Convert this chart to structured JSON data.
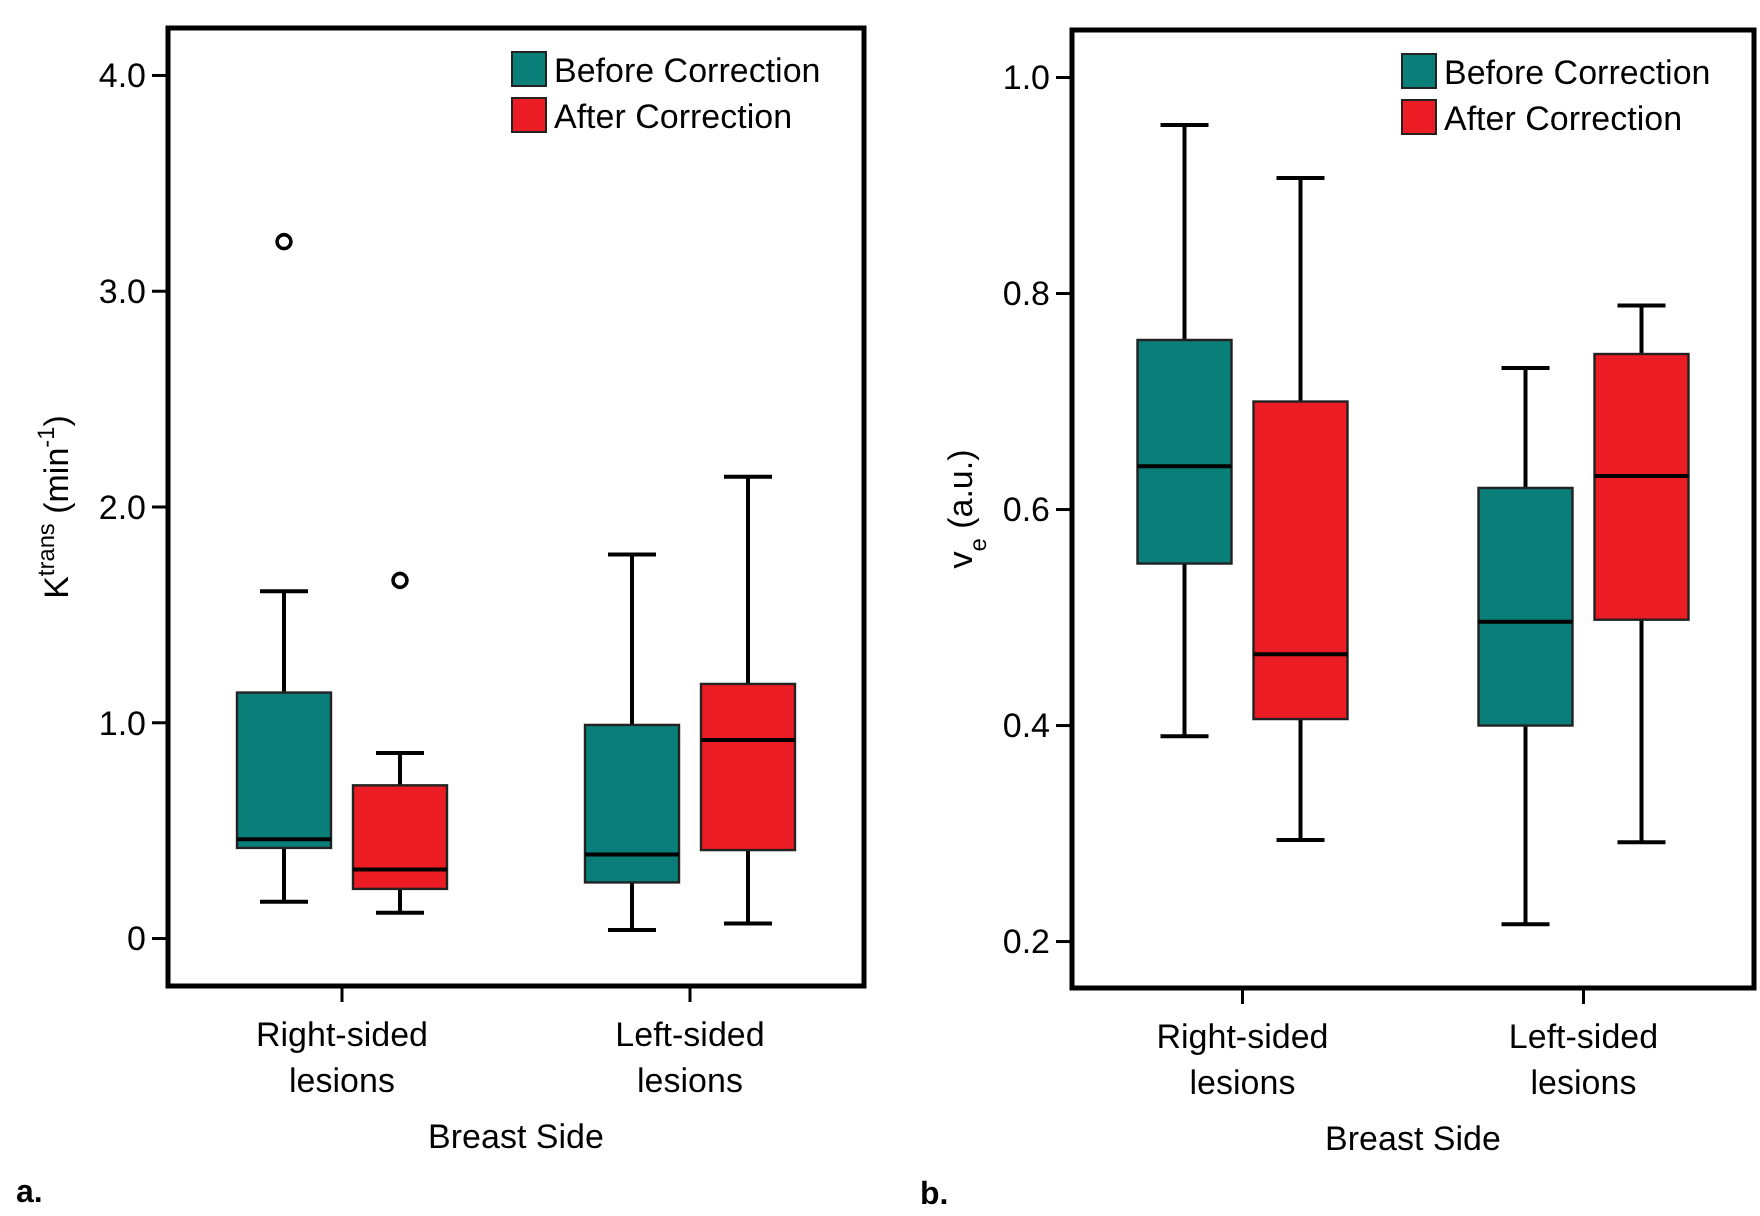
{
  "chart_data": [
    {
      "type": "box",
      "xlabel": "Breast Side",
      "ylabel": "K$^{trans}$ (min$^{-1}$)",
      "categories": [
        "Right-sided\nlesions",
        "Left-sided\nlesions"
      ],
      "ylim": [
        -0.22,
        4.22
      ],
      "yticks": [
        0,
        {
          "value": 1,
          "label": "1.0"
        },
        {
          "value": 2,
          "label": "2.0"
        },
        {
          "value": 3,
          "label": "3.0"
        },
        {
          "value": 4,
          "label": "4.0"
        }
      ],
      "legend": "top right",
      "grid": false,
      "annotations": [
        "a."
      ],
      "series": [
        {
          "name": "Before Correction",
          "color": "#0a7f7a",
          "boxes": [
            {
              "low": 0.17,
              "q1": 0.42,
              "median": 0.46,
              "q3": 1.14,
              "high": 1.61,
              "outliers": [
                3.23
              ]
            },
            {
              "low": 0.04,
              "q1": 0.26,
              "median": 0.39,
              "q3": 0.99,
              "high": 1.78
            }
          ]
        },
        {
          "name": "After Correction",
          "color": "#ec1c24",
          "boxes": [
            {
              "low": 0.12,
              "q1": 0.23,
              "median": 0.32,
              "q3": 0.71,
              "high": 0.86,
              "outliers": [
                1.66
              ]
            },
            {
              "low": 0.07,
              "q1": 0.41,
              "median": 0.92,
              "q3": 1.18,
              "high": 2.14
            }
          ]
        }
      ]
    },
    {
      "type": "box",
      "xlabel": "Breast Side",
      "ylabel": "v$_{e}$ (a.u.)",
      "categories": [
        "Right-sided\nlesions",
        "Left-sided\nlesions"
      ],
      "ylim": [
        0.157,
        1.044
      ],
      "yticks": [
        0.2,
        0.4,
        0.6,
        0.8,
        {
          "value": 1,
          "label": "1.0"
        }
      ],
      "legend": "top right",
      "grid": false,
      "annotations": [
        "b."
      ],
      "series": [
        {
          "name": "Before Correction",
          "color": "#0a7f7a",
          "boxes": [
            {
              "low": 0.39,
              "q1": 0.55,
              "median": 0.64,
              "q3": 0.757,
              "high": 0.956
            },
            {
              "low": 0.216,
              "q1": 0.4,
              "median": 0.496,
              "q3": 0.62,
              "high": 0.731
            }
          ]
        },
        {
          "name": "After Correction",
          "color": "#ec1c24",
          "boxes": [
            {
              "low": 0.294,
              "q1": 0.406,
              "median": 0.466,
              "q3": 0.7,
              "high": 0.907
            },
            {
              "low": 0.292,
              "q1": 0.498,
              "median": 0.631,
              "q3": 0.744,
              "high": 0.789
            }
          ]
        }
      ]
    }
  ]
}
